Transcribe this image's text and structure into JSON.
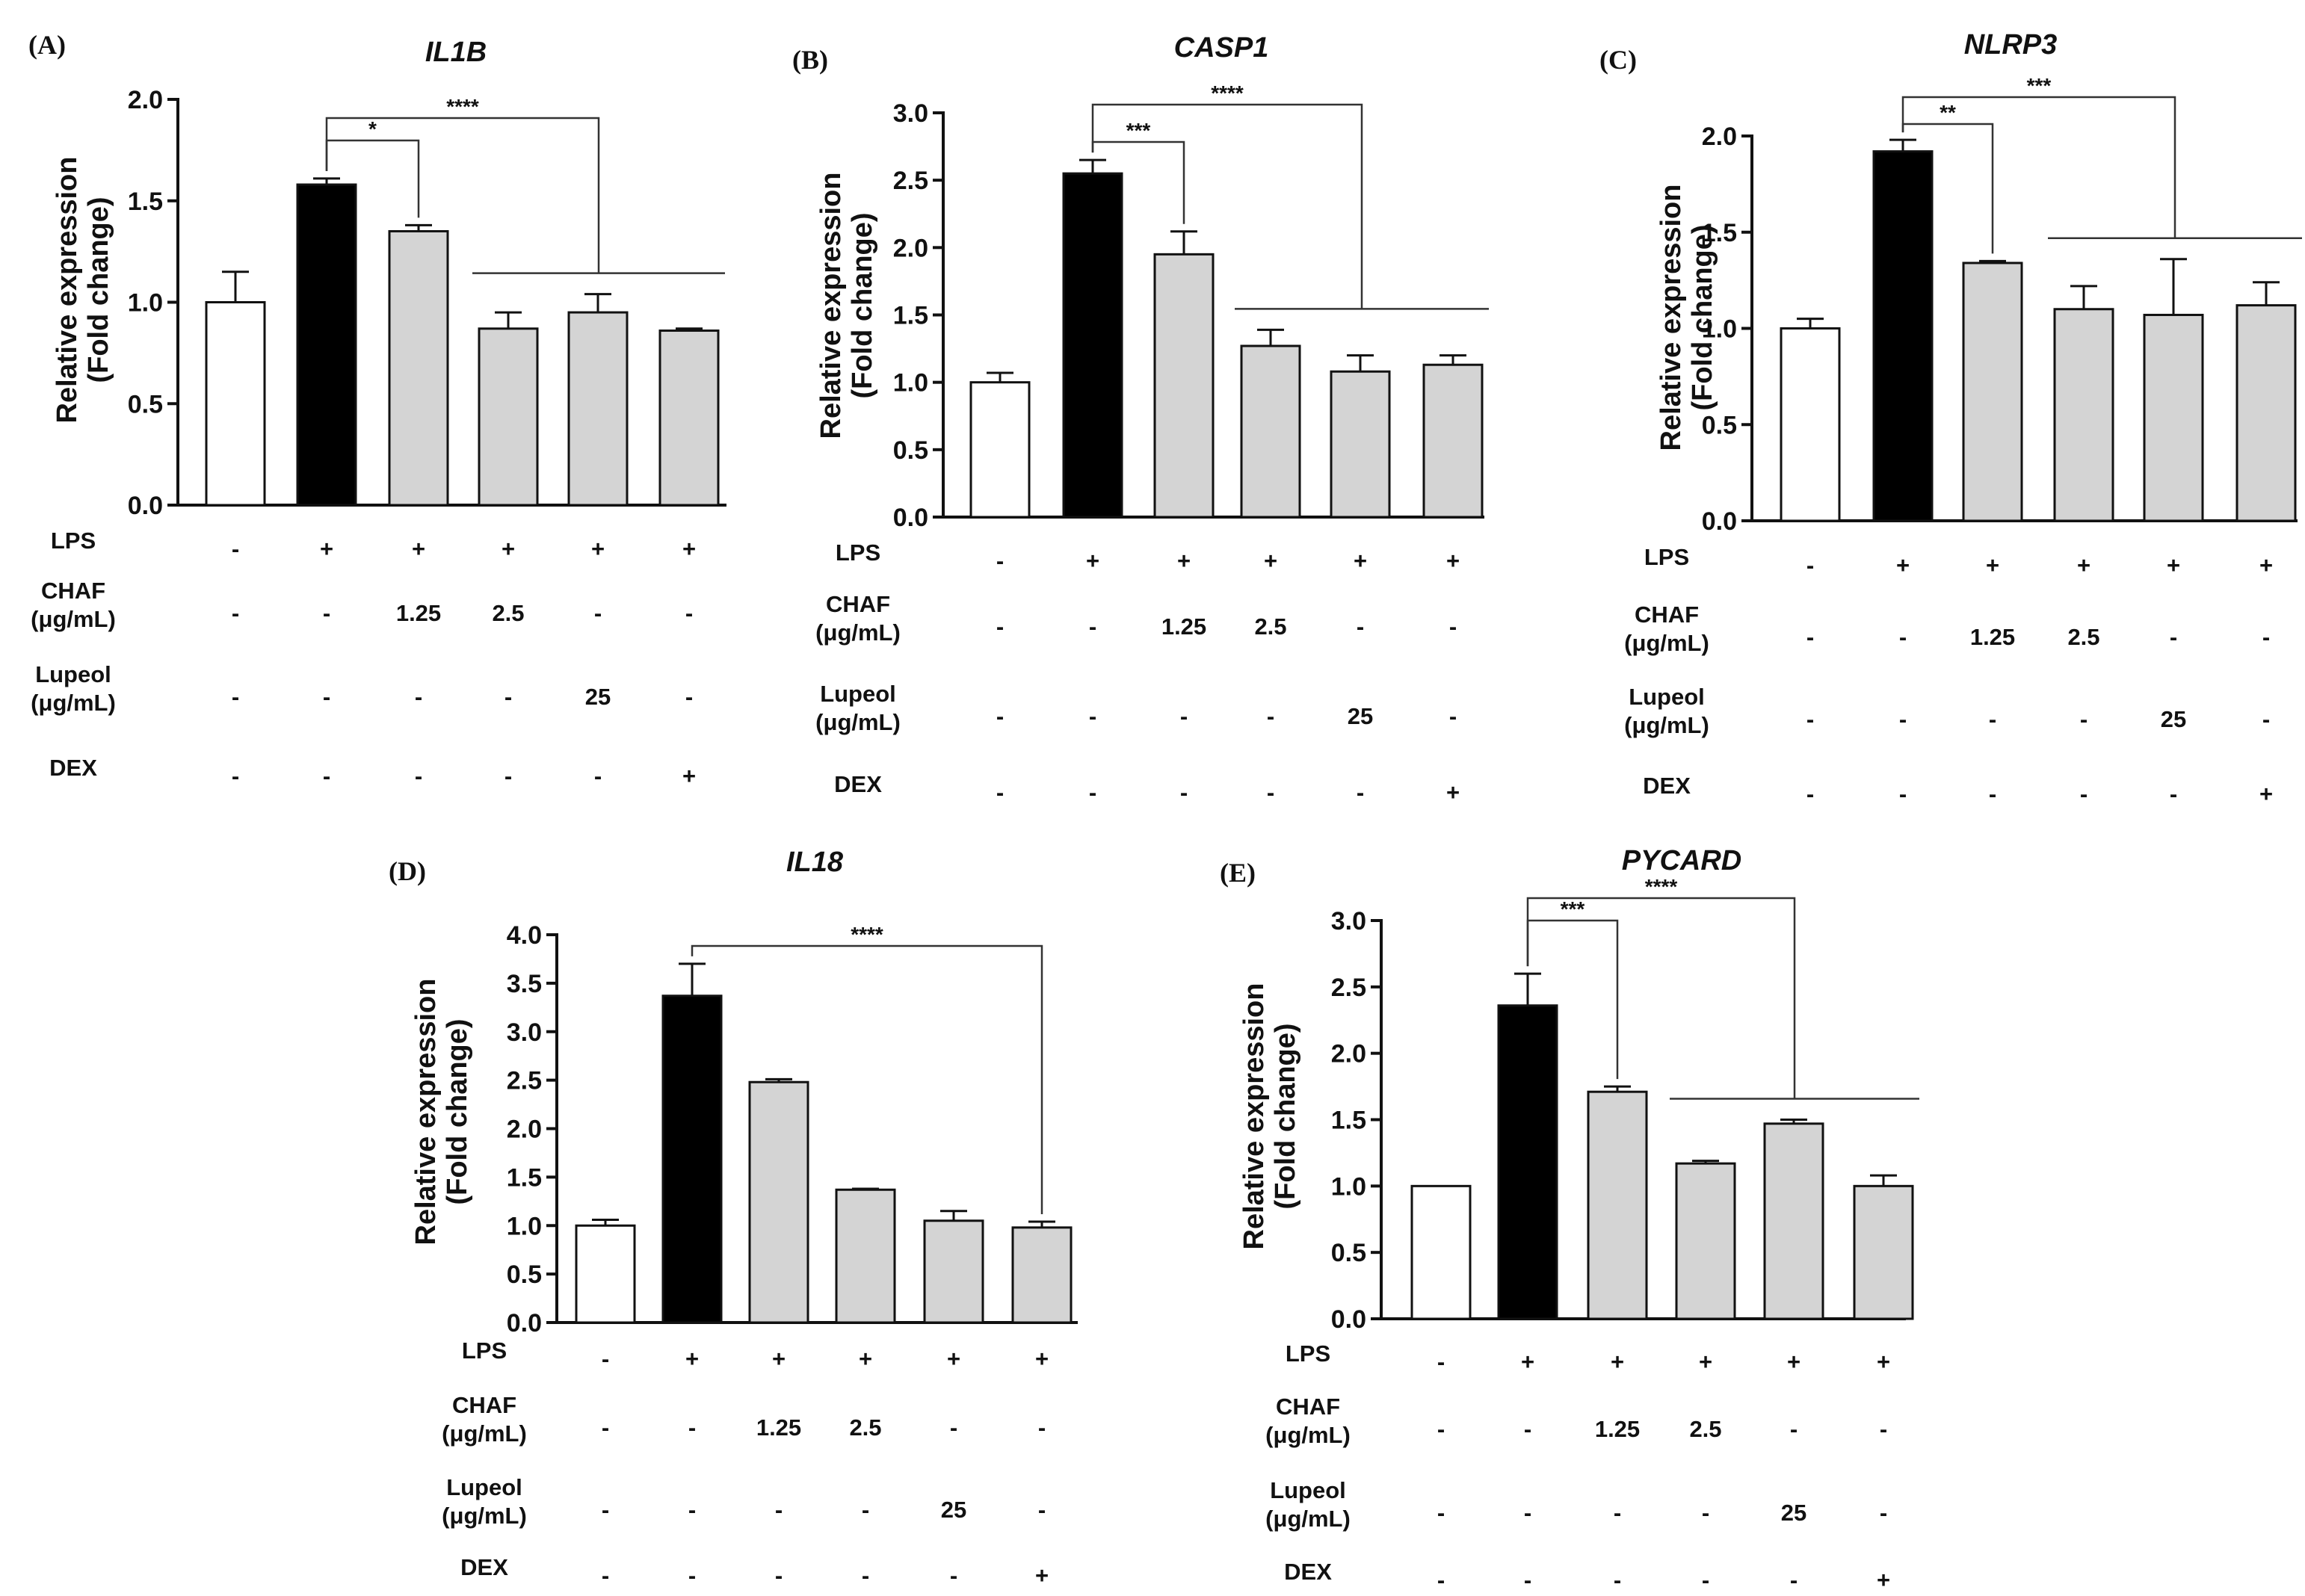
{
  "chart_data": [
    {
      "panel": "(A)",
      "type": "bar",
      "title": "IL1B",
      "ylabel": [
        "Relative expression",
        "(Fold change)"
      ],
      "ylim": [
        0,
        2.0
      ],
      "yticks": [
        0.0,
        0.5,
        1.0,
        1.5,
        2.0
      ],
      "ytick_labels": [
        "0.0",
        "0.5",
        "1.0",
        "1.5",
        "2.0"
      ],
      "values": [
        1.0,
        1.58,
        1.35,
        0.87,
        0.95,
        0.86
      ],
      "errors": [
        0.15,
        0.03,
        0.03,
        0.08,
        0.09,
        0.01
      ],
      "fills": [
        "#ffffff",
        "#000000",
        "#d4d4d4",
        "#d4d4d4",
        "#d4d4d4",
        "#d4d4d4"
      ],
      "significance": [
        {
          "label": "*",
          "from": 1,
          "to": [
            2
          ]
        },
        {
          "label": "****",
          "from": 1,
          "to": [
            3,
            4,
            5
          ]
        }
      ],
      "conditions": [
        {
          "label": [
            "LPS"
          ],
          "values": [
            "-",
            "+",
            "+",
            "+",
            "+",
            "+"
          ]
        },
        {
          "label": [
            "CHAF",
            "(μg/mL)"
          ],
          "values": [
            "-",
            "-",
            "1.25",
            "2.5",
            "-",
            "-"
          ]
        },
        {
          "label": [
            "Lupeol",
            "(μg/mL)"
          ],
          "values": [
            "-",
            "-",
            "-",
            "-",
            "25",
            "-"
          ]
        },
        {
          "label": [
            "DEX"
          ],
          "values": [
            "-",
            "-",
            "-",
            "-",
            "-",
            "+"
          ]
        }
      ]
    },
    {
      "panel": "(B)",
      "type": "bar",
      "title": "CASP1",
      "ylabel": [
        "Relative expression",
        "(Fold change)"
      ],
      "ylim": [
        0,
        3.0
      ],
      "yticks": [
        0.0,
        0.5,
        1.0,
        1.5,
        2.0,
        2.5,
        3.0
      ],
      "ytick_labels": [
        "0.0",
        "0.5",
        "1.0",
        "1.5",
        "2.0",
        "2.5",
        "3.0"
      ],
      "values": [
        1.0,
        2.55,
        1.95,
        1.27,
        1.08,
        1.13
      ],
      "errors": [
        0.07,
        0.1,
        0.17,
        0.12,
        0.12,
        0.07
      ],
      "fills": [
        "#ffffff",
        "#000000",
        "#d4d4d4",
        "#d4d4d4",
        "#d4d4d4",
        "#d4d4d4"
      ],
      "significance": [
        {
          "label": "***",
          "from": 1,
          "to": [
            2
          ]
        },
        {
          "label": "****",
          "from": 1,
          "to": [
            3,
            4,
            5
          ]
        }
      ],
      "conditions": [
        {
          "label": [
            "LPS"
          ],
          "values": [
            "-",
            "+",
            "+",
            "+",
            "+",
            "+"
          ]
        },
        {
          "label": [
            "CHAF",
            "(μg/mL)"
          ],
          "values": [
            "-",
            "-",
            "1.25",
            "2.5",
            "-",
            "-"
          ]
        },
        {
          "label": [
            "Lupeol",
            "(μg/mL)"
          ],
          "values": [
            "-",
            "-",
            "-",
            "-",
            "25",
            "-"
          ]
        },
        {
          "label": [
            "DEX"
          ],
          "values": [
            "-",
            "-",
            "-",
            "-",
            "-",
            "+"
          ]
        }
      ]
    },
    {
      "panel": "(C)",
      "type": "bar",
      "title": "NLRP3",
      "ylabel": [
        "Relative expression",
        "(Fold change)"
      ],
      "ylim": [
        0,
        2.0
      ],
      "yticks": [
        0.0,
        0.5,
        1.0,
        1.5,
        2.0
      ],
      "ytick_labels": [
        "0.0",
        "0.5",
        "1.0",
        "1.5",
        "2.0"
      ],
      "values": [
        1.0,
        1.92,
        1.34,
        1.1,
        1.07,
        1.12
      ],
      "errors": [
        0.05,
        0.06,
        0.01,
        0.12,
        0.29,
        0.12
      ],
      "fills": [
        "#ffffff",
        "#000000",
        "#d4d4d4",
        "#d4d4d4",
        "#d4d4d4",
        "#d4d4d4"
      ],
      "significance": [
        {
          "label": "**",
          "from": 1,
          "to": [
            2
          ]
        },
        {
          "label": "***",
          "from": 1,
          "to": [
            3,
            4,
            5
          ]
        }
      ],
      "conditions": [
        {
          "label": [
            "LPS"
          ],
          "values": [
            "-",
            "+",
            "+",
            "+",
            "+",
            "+"
          ]
        },
        {
          "label": [
            "CHAF",
            "(μg/mL)"
          ],
          "values": [
            "-",
            "-",
            "1.25",
            "2.5",
            "-",
            "-"
          ]
        },
        {
          "label": [
            "Lupeol",
            "(μg/mL)"
          ],
          "values": [
            "-",
            "-",
            "-",
            "-",
            "25",
            "-"
          ]
        },
        {
          "label": [
            "DEX"
          ],
          "values": [
            "-",
            "-",
            "-",
            "-",
            "-",
            "+"
          ]
        }
      ]
    },
    {
      "panel": "(D)",
      "type": "bar",
      "title": "IL18",
      "ylabel": [
        "Relative expression",
        "(Fold change)"
      ],
      "ylim": [
        0,
        4.0
      ],
      "yticks": [
        0.0,
        0.5,
        1.0,
        1.5,
        2.0,
        2.5,
        3.0,
        3.5,
        4.0
      ],
      "ytick_labels": [
        "0.0",
        "0.5",
        "1.0",
        "1.5",
        "2.0",
        "2.5",
        "3.0",
        "3.5",
        "4.0"
      ],
      "values": [
        1.0,
        3.37,
        2.48,
        1.37,
        1.05,
        0.98
      ],
      "errors": [
        0.06,
        0.33,
        0.03,
        0.01,
        0.1,
        0.06
      ],
      "fills": [
        "#ffffff",
        "#000000",
        "#d4d4d4",
        "#d4d4d4",
        "#d4d4d4",
        "#d4d4d4"
      ],
      "significance": [
        {
          "label": "****",
          "from": 1,
          "to": [
            5
          ]
        }
      ],
      "conditions": [
        {
          "label": [
            "LPS"
          ],
          "values": [
            "-",
            "+",
            "+",
            "+",
            "+",
            "+"
          ]
        },
        {
          "label": [
            "CHAF",
            "(μg/mL)"
          ],
          "values": [
            "-",
            "-",
            "1.25",
            "2.5",
            "-",
            "-"
          ]
        },
        {
          "label": [
            "Lupeol",
            "(μg/mL)"
          ],
          "values": [
            "-",
            "-",
            "-",
            "-",
            "25",
            "-"
          ]
        },
        {
          "label": [
            "DEX"
          ],
          "values": [
            "-",
            "-",
            "-",
            "-",
            "-",
            "+"
          ]
        }
      ]
    },
    {
      "panel": "(E)",
      "type": "bar",
      "title": "PYCARD",
      "ylabel": [
        "Relative expression",
        "(Fold change)"
      ],
      "ylim": [
        0,
        3.0
      ],
      "yticks": [
        0.0,
        0.5,
        1.0,
        1.5,
        2.0,
        2.5,
        3.0
      ],
      "ytick_labels": [
        "0.0",
        "0.5",
        "1.0",
        "1.5",
        "2.0",
        "2.5",
        "3.0"
      ],
      "values": [
        1.0,
        2.36,
        1.71,
        1.17,
        1.47,
        1.0
      ],
      "errors": [
        0.0,
        0.24,
        0.04,
        0.02,
        0.03,
        0.08
      ],
      "fills": [
        "#ffffff",
        "#000000",
        "#d4d4d4",
        "#d4d4d4",
        "#d4d4d4",
        "#d4d4d4"
      ],
      "significance": [
        {
          "label": "***",
          "from": 1,
          "to": [
            2
          ]
        },
        {
          "label": "****",
          "from": 1,
          "to": [
            3,
            4,
            5
          ]
        }
      ],
      "conditions": [
        {
          "label": [
            "LPS"
          ],
          "values": [
            "-",
            "+",
            "+",
            "+",
            "+",
            "+"
          ]
        },
        {
          "label": [
            "CHAF",
            "(μg/mL)"
          ],
          "values": [
            "-",
            "-",
            "1.25",
            "2.5",
            "-",
            "-"
          ]
        },
        {
          "label": [
            "Lupeol",
            "(μg/mL)"
          ],
          "values": [
            "-",
            "-",
            "-",
            "-",
            "25",
            "-"
          ]
        },
        {
          "label": [
            "DEX"
          ],
          "values": [
            "-",
            "-",
            "-",
            "-",
            "-",
            "+"
          ]
        }
      ]
    }
  ]
}
